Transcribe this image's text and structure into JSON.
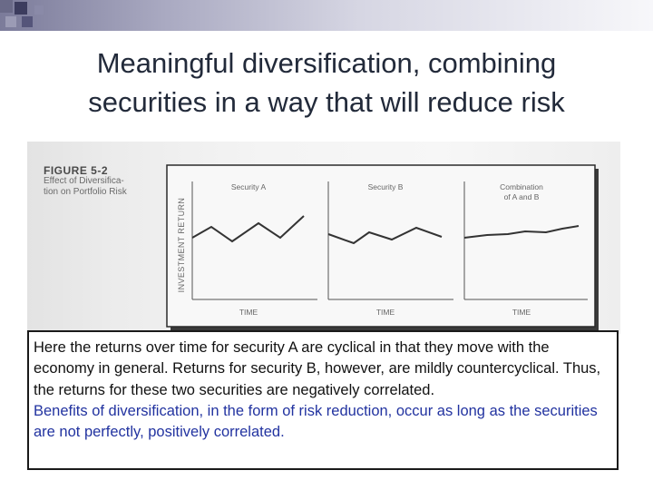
{
  "slide": {
    "title_lines": [
      "Meaningful diversification, combining",
      "securities in a way that will reduce risk"
    ]
  },
  "figure": {
    "label": "FIGURE 5-2",
    "caption_lines": [
      "Effect of Diversifica-",
      "tion on Portfolio Risk"
    ],
    "y_axis_label": "INVESTMENT RETURN",
    "panels": [
      {
        "title_lines": [
          "Security A"
        ],
        "x_axis_label": "TIME"
      },
      {
        "title_lines": [
          "Security B"
        ],
        "x_axis_label": "TIME"
      },
      {
        "title_lines": [
          "Combination",
          "of A and B"
        ],
        "x_axis_label": "TIME"
      }
    ],
    "colors": {
      "line": "#333333",
      "axis": "#555555",
      "frame": "#2a2a2a",
      "text": "#666666"
    }
  },
  "textbox": {
    "paragraph1": "Here the returns over time for security A are cyclical in that they move with the economy in general. Returns for security B, however, are mildly countercyclical. Thus, the returns for these two securities are negatively correlated.",
    "paragraph2": "Benefits of diversification, in the form of risk reduction, occur as long as the securities are not perfectly, positively correlated.",
    "colors": {
      "paragraph1": "#111111",
      "paragraph2": "#2233a0"
    }
  }
}
